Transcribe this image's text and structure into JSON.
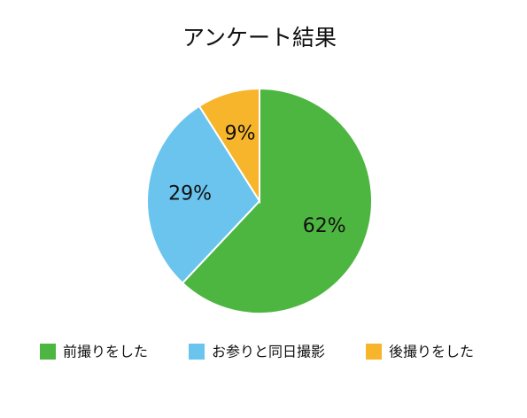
{
  "chart_data": {
    "type": "pie",
    "title": "アンケート結果",
    "categories": [
      "前撮りをした",
      "お参りと同日撮影",
      "後撮りをした"
    ],
    "values": [
      62,
      29,
      9
    ],
    "value_labels": [
      "62%",
      "29%",
      "9%"
    ],
    "colors": [
      "#4db640",
      "#6ac4ee",
      "#f7b52c"
    ]
  }
}
